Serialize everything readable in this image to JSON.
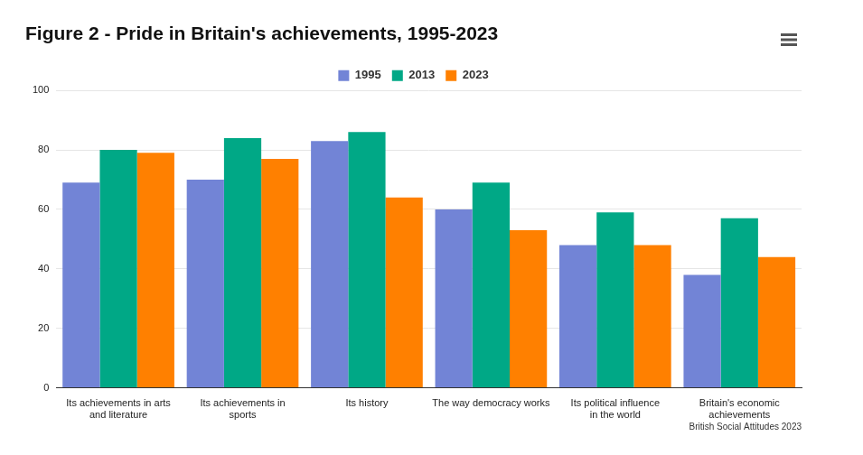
{
  "chart_data": {
    "type": "bar",
    "title": "Figure 2 - Pride in Britain's achievements, 1995-2023",
    "categories": [
      "Its achievements in arts and literature",
      "Its achievements in sports",
      "Its history",
      "The way democracy works",
      "Its political influence in the world",
      "Britain's economic achievements"
    ],
    "series": [
      {
        "name": "1995",
        "color": "#7284d6",
        "values": [
          69,
          70,
          83,
          60,
          48,
          38
        ]
      },
      {
        "name": "2013",
        "color": "#00a886",
        "values": [
          80,
          84,
          86,
          69,
          59,
          57
        ]
      },
      {
        "name": "2023",
        "color": "#ff8000",
        "values": [
          79,
          77,
          64,
          53,
          48,
          44
        ]
      }
    ],
    "ylim": [
      0,
      100
    ],
    "yticks": [
      0,
      20,
      40,
      60,
      80,
      100
    ],
    "grid": true,
    "legend": "top",
    "annotations": [
      "British Social Attitudes 2023"
    ]
  }
}
